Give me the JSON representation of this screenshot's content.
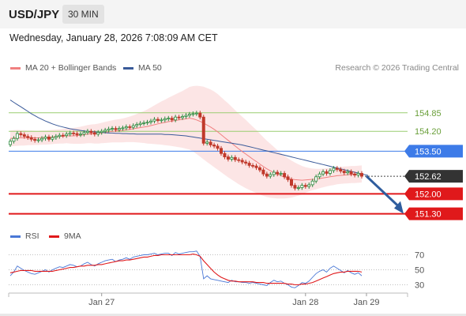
{
  "header": {
    "pair": "USD/JPY",
    "timeframe": "30 MIN",
    "datetime": "Wednesday, January 28, 2026 7:08:09 AM CET"
  },
  "legend": {
    "bb_label": "MA 20 + Bollinger Bands",
    "ma50_label": "MA 50",
    "credit": "Research © 2026 Trading Central",
    "rsi_label": "RSI",
    "rsi_ma_label": "9MA"
  },
  "colors": {
    "bb": "#f08080",
    "ma50": "#3a5a99",
    "green_level": "#9acd70",
    "blue_level": "#3d7be8",
    "red_level": "#e0191b",
    "up": "#2b8a3e",
    "down": "#c0392b",
    "arrow": "#2f5d9e",
    "rsi": "#4a78d6",
    "rsi_ma": "#e0191b",
    "dark_tag": "#333333"
  },
  "chart_data": [
    {
      "type": "candlestick",
      "title": "USD/JPY",
      "ylim": [
        150.9,
        155.9
      ],
      "x_ticks": [
        "Jan 27",
        "Jan 28",
        "Jan 29"
      ],
      "levels": [
        {
          "value": 154.85,
          "label": "154.85",
          "kind": "green"
        },
        {
          "value": 154.2,
          "label": "154.20",
          "kind": "green"
        },
        {
          "value": 153.5,
          "label": "153.50",
          "kind": "blue"
        },
        {
          "value": 152.62,
          "label": "152.62",
          "kind": "current"
        },
        {
          "value": 152.0,
          "label": "152.00",
          "kind": "red"
        },
        {
          "value": 151.3,
          "label": "151.30",
          "kind": "red"
        }
      ],
      "close": [
        153.85,
        153.95,
        154.12,
        154.08,
        154.02,
        153.98,
        153.92,
        153.88,
        153.9,
        153.95,
        154.0,
        153.92,
        153.98,
        154.02,
        154.06,
        154.05,
        154.1,
        154.14,
        154.12,
        154.08,
        154.1,
        154.16,
        154.2,
        154.15,
        154.1,
        154.16,
        154.2,
        154.24,
        154.28,
        154.3,
        154.26,
        154.3,
        154.32,
        154.36,
        154.34,
        154.4,
        154.44,
        154.48,
        154.5,
        154.52,
        154.56,
        154.62,
        154.58,
        154.6,
        154.64,
        154.66,
        154.6,
        154.7,
        154.68,
        154.72,
        154.76,
        154.8,
        154.82,
        154.84,
        154.7,
        153.78,
        153.82,
        153.72,
        153.68,
        153.6,
        153.42,
        153.3,
        153.22,
        153.28,
        153.2,
        153.18,
        153.12,
        153.08,
        153.0,
        152.98,
        152.92,
        152.84,
        152.7,
        152.62,
        152.68,
        152.76,
        152.7,
        152.72,
        152.6,
        152.5,
        152.3,
        152.2,
        152.22,
        152.3,
        152.26,
        152.32,
        152.45,
        152.6,
        152.7,
        152.78,
        152.72,
        152.82,
        152.9,
        152.86,
        152.8,
        152.74,
        152.78,
        152.7,
        152.66,
        152.72,
        152.62
      ],
      "ma20": [
        153.95,
        153.96,
        153.97,
        153.97,
        153.97,
        153.97,
        153.97,
        153.97,
        153.97,
        153.98,
        153.98,
        153.99,
        154.0,
        154.01,
        154.02,
        154.03,
        154.04,
        154.04,
        154.04,
        154.05,
        154.06,
        154.08,
        154.1,
        154.11,
        154.11,
        154.12,
        154.14,
        154.16,
        154.18,
        154.2,
        154.21,
        154.22,
        154.23,
        154.25,
        154.27,
        154.29,
        154.31,
        154.33,
        154.35,
        154.37,
        154.4,
        154.43,
        154.46,
        154.49,
        154.51,
        154.54,
        154.56,
        154.58,
        154.6,
        154.62,
        154.64,
        154.66,
        154.64,
        154.6,
        154.55,
        154.49,
        154.42,
        154.35,
        154.27,
        154.18,
        154.08,
        153.98,
        153.88,
        153.78,
        153.68,
        153.58,
        153.49,
        153.4,
        153.31,
        153.22,
        153.14,
        153.05,
        152.96,
        152.88,
        152.81,
        152.75,
        152.69,
        152.64,
        152.59,
        152.55,
        152.52,
        152.5,
        152.49,
        152.48,
        152.49,
        152.5,
        152.51,
        152.52,
        152.54,
        152.56,
        152.58,
        152.6,
        152.62,
        152.64,
        152.65,
        152.66,
        152.67,
        152.68,
        152.68,
        152.69,
        152.7
      ],
      "bb_width": [
        0.28,
        0.28,
        0.28,
        0.27,
        0.27,
        0.26,
        0.26,
        0.25,
        0.25,
        0.25,
        0.25,
        0.25,
        0.25,
        0.25,
        0.25,
        0.26,
        0.26,
        0.27,
        0.28,
        0.29,
        0.3,
        0.31,
        0.32,
        0.33,
        0.34,
        0.35,
        0.36,
        0.37,
        0.38,
        0.39,
        0.4,
        0.41,
        0.42,
        0.43,
        0.45,
        0.47,
        0.5,
        0.53,
        0.56,
        0.6,
        0.64,
        0.68,
        0.72,
        0.76,
        0.8,
        0.84,
        0.88,
        0.92,
        0.96,
        1.0,
        1.05,
        1.1,
        1.15,
        1.2,
        1.24,
        1.28,
        1.3,
        1.32,
        1.33,
        1.33,
        1.32,
        1.31,
        1.3,
        1.28,
        1.26,
        1.24,
        1.22,
        1.2,
        1.17,
        1.14,
        1.11,
        1.07,
        1.03,
        0.99,
        0.95,
        0.9,
        0.85,
        0.8,
        0.75,
        0.7,
        0.65,
        0.6,
        0.55,
        0.5,
        0.45,
        0.41,
        0.38,
        0.36,
        0.34,
        0.33,
        0.32,
        0.31,
        0.31,
        0.3,
        0.3,
        0.3,
        0.3,
        0.3,
        0.3,
        0.3,
        0.3
      ],
      "ma50": [
        155.3,
        155.22,
        155.14,
        155.06,
        154.98,
        154.9,
        154.82,
        154.75,
        154.68,
        154.62,
        154.56,
        154.51,
        154.46,
        154.42,
        154.38,
        154.35,
        154.32,
        154.29,
        154.27,
        154.25,
        154.23,
        154.21,
        154.2,
        154.19,
        154.18,
        154.17,
        154.16,
        154.15,
        154.14,
        154.14,
        154.13,
        154.13,
        154.12,
        154.12,
        154.11,
        154.11,
        154.1,
        154.1,
        154.1,
        154.1,
        154.1,
        154.1,
        154.1,
        154.1,
        154.09,
        154.09,
        154.08,
        154.07,
        154.06,
        154.05,
        154.04,
        154.02,
        154.0,
        153.98,
        153.96,
        153.94,
        153.92,
        153.9,
        153.88,
        153.86,
        153.84,
        153.82,
        153.8,
        153.78,
        153.76,
        153.74,
        153.72,
        153.69,
        153.66,
        153.63,
        153.6,
        153.57,
        153.54,
        153.51,
        153.48,
        153.45,
        153.42,
        153.39,
        153.36,
        153.33,
        153.3,
        153.27,
        153.24,
        153.21,
        153.18,
        153.15,
        153.12,
        153.09,
        153.06,
        153.03,
        153.0,
        152.97,
        152.94,
        152.91,
        152.88,
        152.85,
        152.82,
        152.79,
        152.76,
        152.73,
        152.7
      ]
    },
    {
      "type": "line",
      "title": "RSI",
      "ylim": [
        20,
        80
      ],
      "y_ticks": [
        70,
        50,
        30
      ],
      "series": [
        {
          "name": "RSI",
          "values": [
            42,
            47,
            55,
            52,
            49,
            47,
            45,
            44,
            46,
            48,
            50,
            47,
            50,
            52,
            54,
            53,
            55,
            57,
            56,
            54,
            55,
            58,
            60,
            57,
            55,
            58,
            60,
            62,
            63,
            64,
            61,
            63,
            64,
            66,
            64,
            67,
            68,
            69,
            70,
            70,
            71,
            72,
            70,
            71,
            72,
            72,
            69,
            73,
            71,
            72,
            73,
            74,
            74,
            75,
            68,
            38,
            42,
            38,
            37,
            36,
            35,
            34,
            33,
            36,
            34,
            34,
            33,
            33,
            32,
            33,
            32,
            31,
            30,
            29,
            33,
            36,
            34,
            35,
            32,
            30,
            27,
            26,
            29,
            33,
            32,
            35,
            40,
            45,
            48,
            50,
            47,
            52,
            55,
            52,
            49,
            46,
            49,
            46,
            44,
            46,
            42
          ]
        },
        {
          "name": "9MA",
          "values": [
            46,
            47,
            48,
            49,
            49,
            49,
            49,
            48,
            48,
            48,
            48,
            48,
            48,
            49,
            50,
            51,
            52,
            53,
            53,
            54,
            55,
            55,
            56,
            56,
            56,
            57,
            57,
            58,
            59,
            60,
            61,
            62,
            62,
            63,
            63,
            64,
            65,
            66,
            67,
            67,
            68,
            69,
            69,
            70,
            70,
            70,
            70,
            70,
            70,
            70,
            70,
            70,
            71,
            70,
            68,
            62,
            57,
            52,
            47,
            43,
            40,
            38,
            36,
            35,
            35,
            34,
            34,
            34,
            34,
            34,
            33,
            33,
            33,
            32,
            32,
            32,
            32,
            32,
            32,
            31,
            31,
            30,
            30,
            31,
            31,
            32,
            33,
            35,
            37,
            39,
            41,
            43,
            45,
            46,
            47,
            47,
            48,
            48,
            48,
            48,
            47
          ]
        }
      ]
    }
  ]
}
